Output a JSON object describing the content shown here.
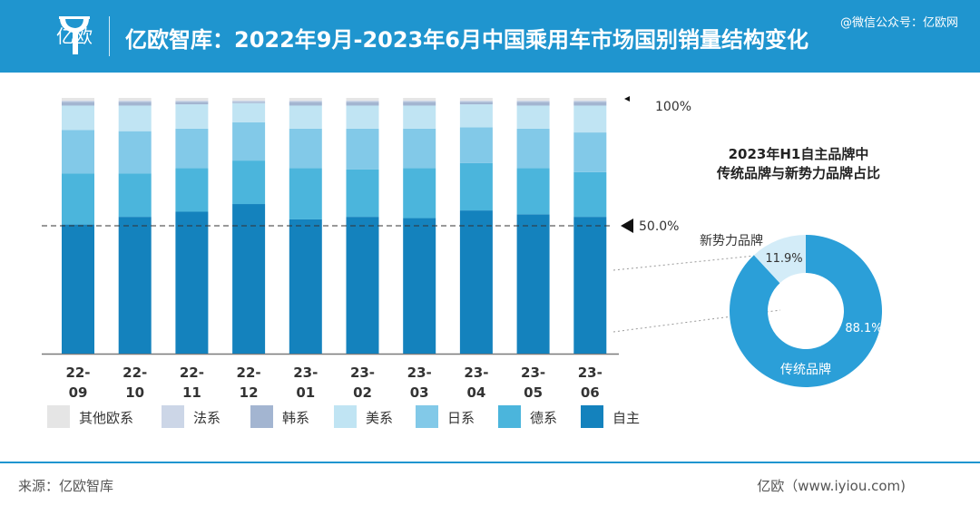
{
  "header": {
    "logo_text": "亿欧",
    "title": "亿欧智库：2022年9月-2023年6月中国乘用车市场国别销量结构变化",
    "watermark": "@微信公众号：亿欧网"
  },
  "footer": {
    "source": "来源：亿欧智库",
    "site": "亿欧（www.iyiou.com)"
  },
  "colors": {
    "header": "#1f95cf",
    "自主": "#1482bd",
    "德系": "#4bb5dc",
    "日系": "#82c9e8",
    "美系": "#c0e4f3",
    "韩系": "#a3b5d1",
    "法系": "#ccd6e7",
    "其他欧系": "#e5e5e5",
    "donut_main": "#2b9fd8",
    "donut_minor": "#d3ecf8"
  },
  "chart_data": [
    {
      "type": "bar",
      "stacked": true,
      "normalized": true,
      "categories": [
        [
          "22-",
          "09"
        ],
        [
          "22-",
          "10"
        ],
        [
          "22-",
          "11"
        ],
        [
          "22-",
          "12"
        ],
        [
          "23-",
          "01"
        ],
        [
          "23-",
          "02"
        ],
        [
          "23-",
          "03"
        ],
        [
          "23-",
          "04"
        ],
        [
          "23-",
          "05"
        ],
        [
          "23-",
          "06"
        ]
      ],
      "ylim": [
        0,
        100
      ],
      "reference_labels": [
        "100%",
        "50.0%"
      ],
      "series": [
        {
          "name": "自主",
          "values": [
            50.5,
            53.5,
            55.5,
            58.5,
            52.5,
            53.5,
            53.0,
            56.0,
            54.5,
            53.5
          ]
        },
        {
          "name": "德系",
          "values": [
            20.0,
            17.0,
            17.0,
            17.0,
            20.0,
            18.5,
            19.5,
            18.5,
            18.0,
            17.5
          ]
        },
        {
          "name": "日系",
          "values": [
            17.0,
            16.5,
            15.5,
            15.0,
            15.5,
            16.0,
            15.5,
            14.0,
            15.5,
            15.5
          ]
        },
        {
          "name": "美系",
          "values": [
            9.5,
            10.0,
            9.5,
            7.5,
            9.0,
            9.0,
            9.0,
            9.0,
            9.0,
            10.5
          ]
        },
        {
          "name": "韩系",
          "values": [
            1.5,
            1.5,
            1.0,
            0.5,
            1.5,
            1.5,
            1.5,
            1.0,
            1.5,
            1.5
          ]
        },
        {
          "name": "法系",
          "values": [
            0.5,
            0.5,
            0.5,
            0.5,
            0.5,
            0.5,
            0.5,
            0.5,
            0.5,
            0.5
          ]
        },
        {
          "name": "其他欧系",
          "values": [
            1.0,
            1.0,
            1.0,
            1.0,
            1.0,
            1.0,
            1.0,
            1.0,
            1.0,
            1.0
          ]
        }
      ],
      "legend_order": [
        "其他欧系",
        "法系",
        "韩系",
        "美系",
        "日系",
        "德系",
        "自主"
      ],
      "legend_placement": "bottom"
    },
    {
      "type": "pie",
      "donut": true,
      "title": [
        "2023年H1自主品牌中",
        "传统品牌与新势力品牌占比"
      ],
      "slices": [
        {
          "name": "传统品牌",
          "value": 88.1,
          "label": "88.1%"
        },
        {
          "name": "新势力品牌",
          "value": 11.9,
          "label": "11.9%"
        }
      ]
    }
  ]
}
